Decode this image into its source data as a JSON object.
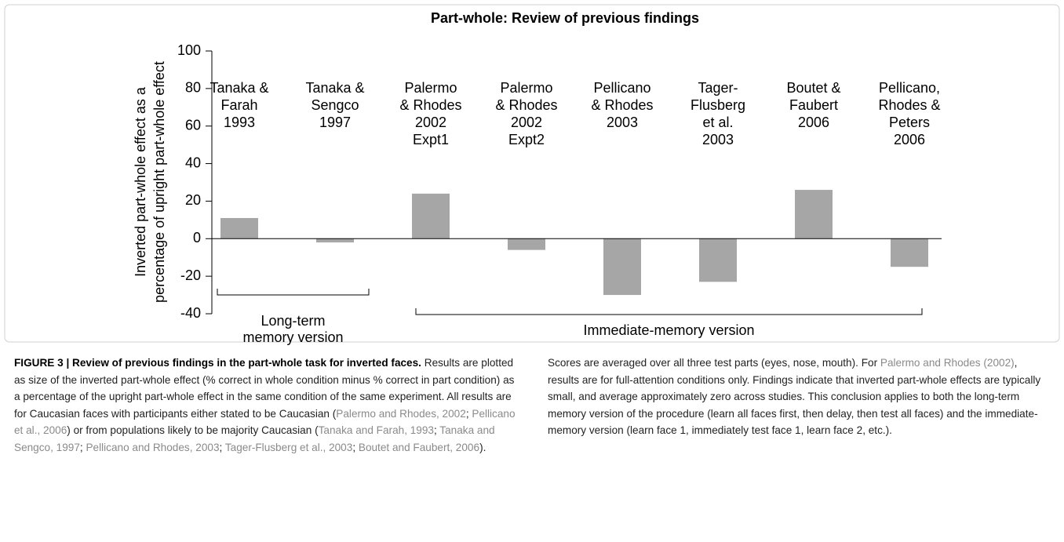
{
  "chart_data": {
    "type": "bar",
    "title": "Part-whole: Review of previous findings",
    "ylabel": [
      "Inverted part-whole effect as a",
      "percentage of upright part-whole effect"
    ],
    "categories": [
      [
        "Tanaka &",
        "Farah",
        "1993"
      ],
      [
        "Tanaka &",
        "Sengco",
        "1997"
      ],
      [
        "Palermo",
        "& Rhodes",
        "2002",
        "Expt1"
      ],
      [
        "Palermo",
        "& Rhodes",
        "2002",
        "Expt2"
      ],
      [
        "Pellicano",
        "& Rhodes",
        "2003"
      ],
      [
        "Tager-",
        "Flusberg",
        "et al.",
        "2003"
      ],
      [
        "Boutet &",
        "Faubert",
        "2006"
      ],
      [
        "Pellicano,",
        "Rhodes &",
        "Peters",
        "2006"
      ]
    ],
    "values": [
      11,
      -2,
      24,
      -6,
      -30,
      -23,
      26,
      -15
    ],
    "color": "#a6a6a6",
    "ylim": [
      -40,
      100
    ],
    "yticks": [
      -40,
      -20,
      0,
      20,
      40,
      60,
      80,
      100
    ],
    "annotations": [
      [
        "Long-term",
        "memory version"
      ],
      [
        "Immediate-memory version"
      ]
    ]
  },
  "caption": {
    "label": "FIGURE 3 | Review of previous findings in the part-whole task for inverted faces.",
    "runs": [
      {
        "text": " Results are plotted as size of the inverted part-whole effect (% correct in whole condition minus % correct in part condition) as a percentage of the upright part-whole effect in the same condition of the same experiment. All results are for Caucasian faces with participants either stated to be Caucasian (",
        "link": false
      },
      {
        "text": "Palermo and Rhodes, 2002",
        "link": true
      },
      {
        "text": "; ",
        "link": false
      },
      {
        "text": "Pellicano et al., 2006",
        "link": true
      },
      {
        "text": ") or from populations likely to be majority Caucasian (",
        "link": false
      },
      {
        "text": "Tanaka and Farah, 1993",
        "link": true
      },
      {
        "text": "; ",
        "link": false
      },
      {
        "text": "Tanaka and Sengco, 1997",
        "link": true
      },
      {
        "text": "; ",
        "link": false
      },
      {
        "text": "Pellicano and Rhodes, 2003",
        "link": true
      },
      {
        "text": "; ",
        "link": false
      },
      {
        "text": "Tager-Flusberg et al., 2003",
        "link": true
      },
      {
        "text": "; ",
        "link": false
      },
      {
        "text": "Boutet and Faubert, 2006",
        "link": true
      },
      {
        "text": "). Scores are averaged over all three test parts (eyes, nose, mouth). For ",
        "link": false
      },
      {
        "text": "Palermo and Rhodes (2002)",
        "link": true
      },
      {
        "text": ", results are for full-attention conditions only. Findings indicate that inverted part-whole effects are typically small, and average approximately zero across studies. This conclusion applies to both the long-term memory version of the procedure (learn all faces first, then delay, then test all faces) and the immediate-memory version (learn face 1, immediately test face 1, learn face 2, etc.).",
        "link": false
      }
    ]
  }
}
